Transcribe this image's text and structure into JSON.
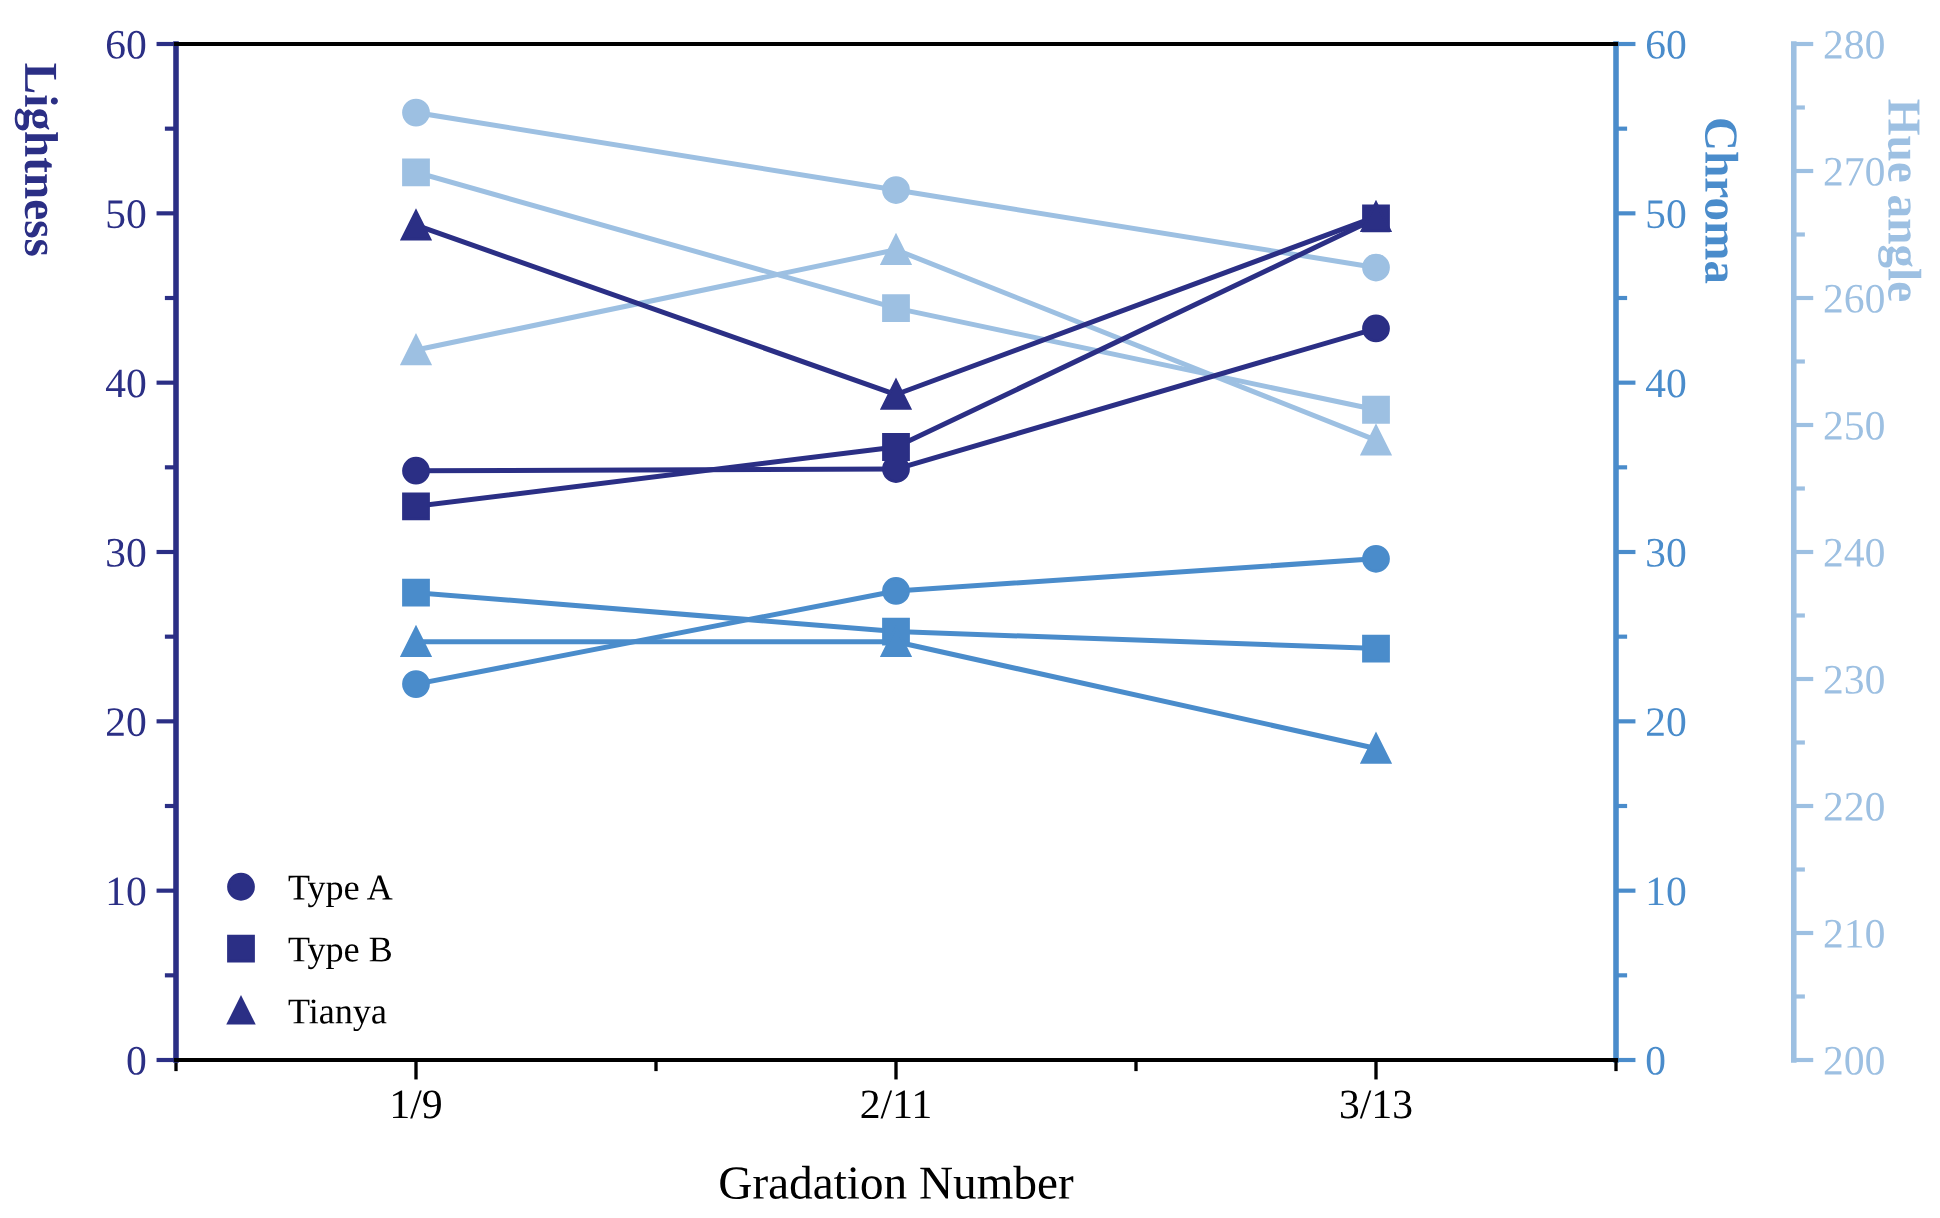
{
  "chart_data": {
    "type": "line",
    "xlabel": "Gradation Number",
    "ylabel": "Lightness",
    "y2label": "Chroma",
    "y3label": "Hue angle",
    "categories": [
      "1/9",
      "2/11",
      "3/13"
    ],
    "ylim": [
      0,
      60
    ],
    "yticks": [
      0,
      10,
      20,
      30,
      40,
      50,
      60
    ],
    "y2lim": [
      0,
      60
    ],
    "y2ticks": [
      0,
      10,
      20,
      30,
      40,
      50,
      60
    ],
    "y3lim": [
      200,
      280
    ],
    "y3ticks": [
      200,
      210,
      220,
      230,
      240,
      250,
      260,
      270,
      280
    ],
    "legend": "bottom left",
    "grid": false,
    "line_style": "solid",
    "series": [
      {
        "name": "Type A",
        "marker": "circle",
        "color": "#2b2f85",
        "axis": "y",
        "values": [
          34.8,
          34.9,
          43.2
        ]
      },
      {
        "name": "Type B",
        "marker": "square",
        "color": "#2b2f85",
        "axis": "y",
        "values": [
          32.7,
          36.2,
          49.7
        ]
      },
      {
        "name": "Tianya",
        "marker": "triangle",
        "color": "#2b2f85",
        "axis": "y",
        "values": [
          49.3,
          39.3,
          49.8
        ]
      },
      {
        "marker": "circle",
        "color": "#4a8ccb",
        "axis": "y2",
        "values": [
          22.2,
          27.7,
          29.6
        ]
      },
      {
        "marker": "square",
        "color": "#4a8ccb",
        "axis": "y2",
        "values": [
          27.6,
          25.3,
          24.3
        ]
      },
      {
        "marker": "triangle",
        "color": "#4a8ccb",
        "axis": "y2",
        "values": [
          24.7,
          24.7,
          18.4
        ]
      },
      {
        "marker": "circle",
        "color": "#9dc0e2",
        "axis": "y3",
        "values": [
          274.6,
          268.5,
          262.4
        ]
      },
      {
        "marker": "square",
        "color": "#9dc0e2",
        "axis": "y3",
        "values": [
          269.9,
          259.2,
          251.2
        ]
      },
      {
        "marker": "triangle",
        "color": "#9dc0e2",
        "axis": "y3",
        "values": [
          255.9,
          263.8,
          248.8
        ]
      }
    ]
  }
}
